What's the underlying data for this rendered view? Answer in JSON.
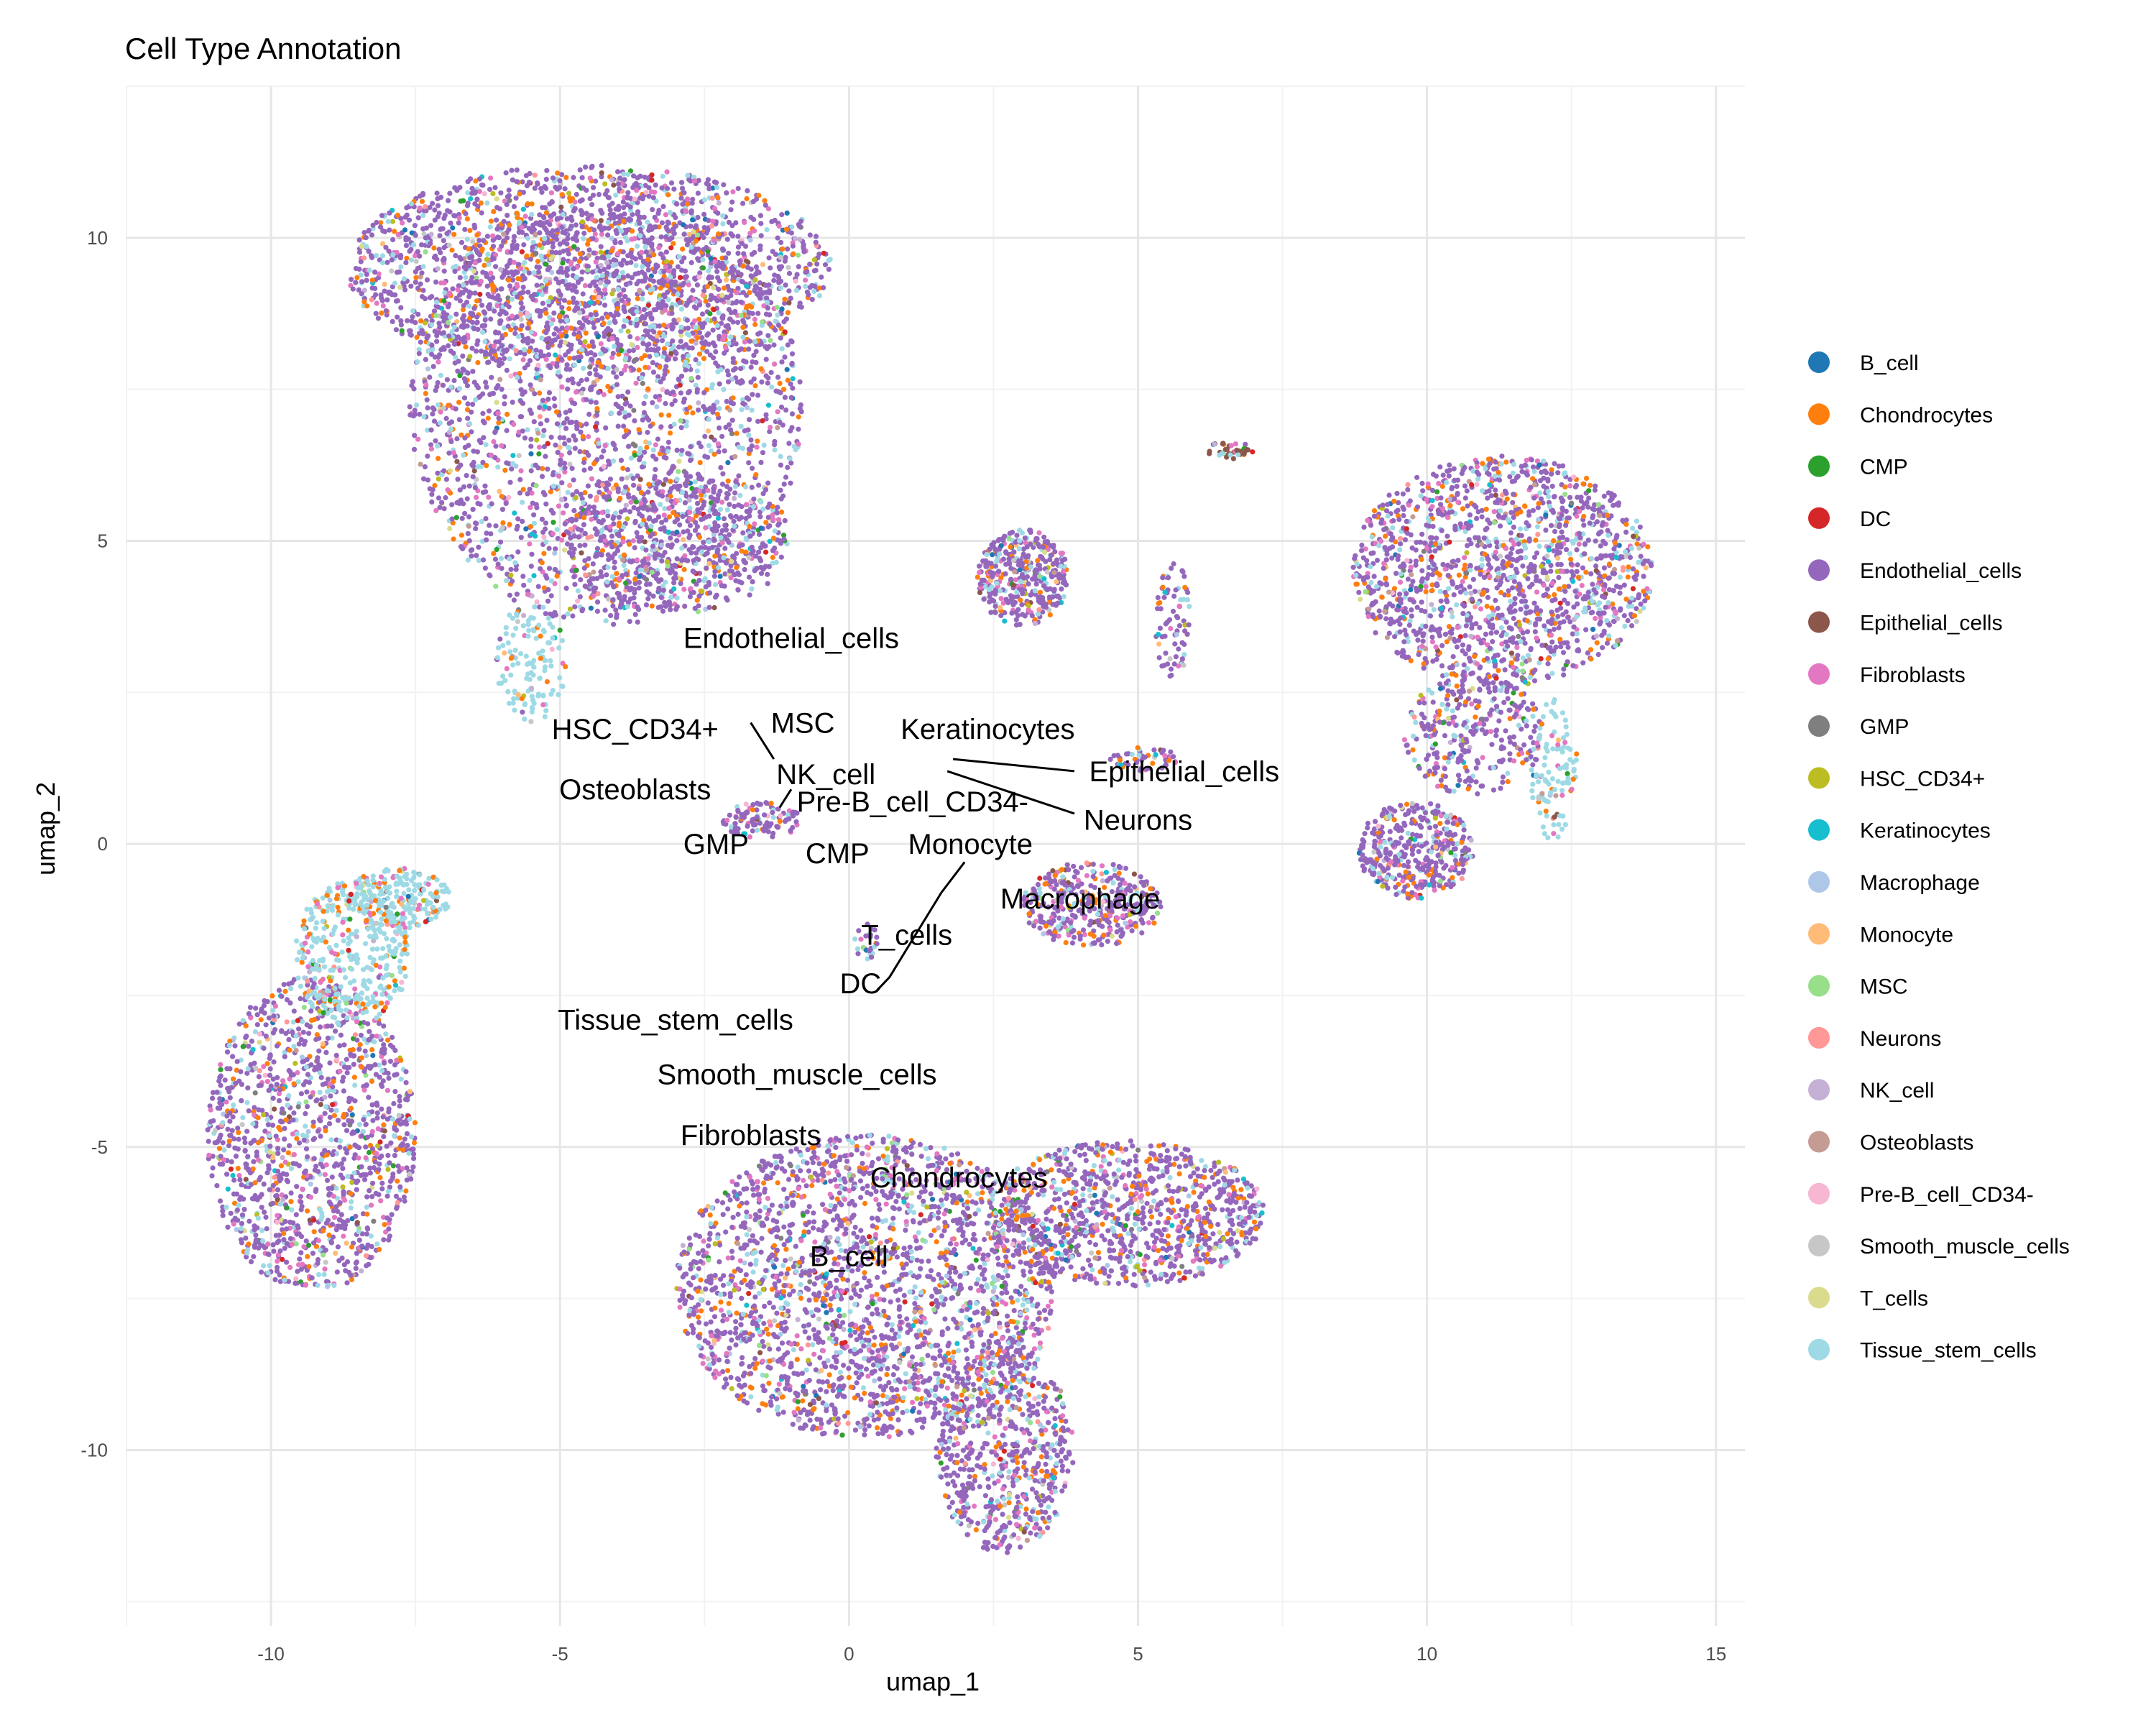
{
  "chart_data": {
    "type": "scatter",
    "title": "Cell Type Annotation",
    "xlabel": "umap_1",
    "ylabel": "umap_2",
    "xlim": [
      -12.5,
      15.5
    ],
    "ylim": [
      -12.9,
      12.5
    ],
    "x_ticks": [
      -10,
      -5,
      0,
      5,
      10,
      15
    ],
    "y_ticks": [
      -10,
      -5,
      0,
      5,
      10
    ],
    "x_tick_labels": [
      "-10",
      "-5",
      "0",
      "5",
      "10",
      "15"
    ],
    "y_tick_labels": [
      "-10",
      "-5",
      "0",
      "5",
      "10"
    ],
    "grid": true,
    "legend_position": "right",
    "categories": [
      {
        "name": "B_cell",
        "color": "#1f77b4"
      },
      {
        "name": "Chondrocytes",
        "color": "#ff7f0e"
      },
      {
        "name": "CMP",
        "color": "#2ca02c"
      },
      {
        "name": "DC",
        "color": "#d62728"
      },
      {
        "name": "Endothelial_cells",
        "color": "#9467bd"
      },
      {
        "name": "Epithelial_cells",
        "color": "#8c564b"
      },
      {
        "name": "Fibroblasts",
        "color": "#e377c2"
      },
      {
        "name": "GMP",
        "color": "#7f7f7f"
      },
      {
        "name": "HSC_CD34+",
        "color": "#bcbd22"
      },
      {
        "name": "Keratinocytes",
        "color": "#17becf"
      },
      {
        "name": "Macrophage",
        "color": "#aec7e8"
      },
      {
        "name": "Monocyte",
        "color": "#ffbb78"
      },
      {
        "name": "MSC",
        "color": "#98df8a"
      },
      {
        "name": "Neurons",
        "color": "#ff9896"
      },
      {
        "name": "NK_cell",
        "color": "#c5b0d5"
      },
      {
        "name": "Osteoblasts",
        "color": "#c49c94"
      },
      {
        "name": "Pre-B_cell_CD34-",
        "color": "#f7b6d2"
      },
      {
        "name": "Smooth_muscle_cells",
        "color": "#c7c7c7"
      },
      {
        "name": "T_cells",
        "color": "#dbdb8d"
      },
      {
        "name": "Tissue_stem_cells",
        "color": "#9edae5"
      }
    ],
    "clusters": [
      {
        "cx": -4.2,
        "cy": 7.2,
        "rx": 3.4,
        "ry": 3.6,
        "weight": 9,
        "dominant": "Endothelial_cells"
      },
      {
        "cx": -4.5,
        "cy": 9.5,
        "rx": 4.2,
        "ry": 1.7,
        "weight": 7,
        "dominant": "Endothelial_cells"
      },
      {
        "cx": -3.0,
        "cy": 5.0,
        "rx": 2.0,
        "ry": 1.2,
        "weight": 2,
        "dominant": "Endothelial_cells"
      },
      {
        "cx": -5.5,
        "cy": 3.0,
        "rx": 0.6,
        "ry": 1.0,
        "weight": 0.5,
        "dominant": "Tissue_stem_cells"
      },
      {
        "cx": -9.3,
        "cy": -4.8,
        "rx": 1.8,
        "ry": 2.6,
        "weight": 5,
        "dominant": "Endothelial_cells"
      },
      {
        "cx": -8.6,
        "cy": -1.8,
        "rx": 1.0,
        "ry": 1.2,
        "weight": 1.5,
        "dominant": "Tissue_stem_cells"
      },
      {
        "cx": -7.8,
        "cy": -0.9,
        "rx": 0.9,
        "ry": 0.5,
        "weight": 0.8,
        "dominant": "Tissue_stem_cells"
      },
      {
        "cx": 0.3,
        "cy": -7.3,
        "rx": 3.3,
        "ry": 2.5,
        "weight": 9,
        "dominant": "Endothelial_cells"
      },
      {
        "cx": 4.8,
        "cy": -6.1,
        "rx": 2.4,
        "ry": 1.2,
        "weight": 4,
        "dominant": "Endothelial_cells"
      },
      {
        "cx": 2.7,
        "cy": -10.0,
        "rx": 1.2,
        "ry": 1.7,
        "weight": 2.5,
        "dominant": "Endothelial_cells"
      },
      {
        "cx": 11.3,
        "cy": 4.5,
        "rx": 2.6,
        "ry": 1.9,
        "weight": 6,
        "dominant": "Endothelial_cells"
      },
      {
        "cx": 9.8,
        "cy": -0.1,
        "rx": 1.0,
        "ry": 0.8,
        "weight": 1.5,
        "dominant": "Endothelial_cells"
      },
      {
        "cx": 10.8,
        "cy": 1.8,
        "rx": 1.2,
        "ry": 1.0,
        "weight": 1.2,
        "dominant": "Endothelial_cells"
      },
      {
        "cx": 12.2,
        "cy": 1.2,
        "rx": 0.4,
        "ry": 1.2,
        "weight": 0.4,
        "dominant": "Tissue_stem_cells"
      },
      {
        "cx": 3.0,
        "cy": 4.4,
        "rx": 0.8,
        "ry": 0.8,
        "weight": 1.5,
        "dominant": "Endothelial_cells"
      },
      {
        "cx": 4.2,
        "cy": -1.0,
        "rx": 1.2,
        "ry": 0.7,
        "weight": 1.5,
        "dominant": "Endothelial_cells"
      },
      {
        "cx": -1.5,
        "cy": 0.4,
        "rx": 0.7,
        "ry": 0.3,
        "weight": 0.4,
        "dominant": "Endothelial_cells"
      },
      {
        "cx": 5.6,
        "cy": 3.7,
        "rx": 0.3,
        "ry": 1.0,
        "weight": 0.3,
        "dominant": "Endothelial_cells"
      },
      {
        "cx": 6.6,
        "cy": 6.5,
        "rx": 0.4,
        "ry": 0.15,
        "weight": 0.15,
        "dominant": "Epithelial_cells"
      },
      {
        "cx": 5.1,
        "cy": 1.4,
        "rx": 0.6,
        "ry": 0.2,
        "weight": 0.2,
        "dominant": "Endothelial_cells"
      },
      {
        "cx": 0.3,
        "cy": -1.6,
        "rx": 0.2,
        "ry": 0.3,
        "weight": 0.1,
        "dominant": "Endothelial_cells"
      }
    ],
    "cluster_labels": [
      {
        "text": "Endothelial_cells",
        "x": -1.0,
        "y": 3.4
      },
      {
        "text": "HSC_CD34+",
        "x": -3.7,
        "y": 1.9
      },
      {
        "text": "MSC",
        "x": -0.8,
        "y": 2.0
      },
      {
        "text": "Keratinocytes",
        "x": 2.4,
        "y": 1.9
      },
      {
        "text": "Osteoblasts",
        "x": -3.7,
        "y": 0.9
      },
      {
        "text": "NK_cell",
        "x": -0.4,
        "y": 1.15
      },
      {
        "text": "Epithelial_cells",
        "x": 5.8,
        "y": 1.2
      },
      {
        "text": "Pre-B_cell_CD34-",
        "x": 1.1,
        "y": 0.7
      },
      {
        "text": "Neurons",
        "x": 5.0,
        "y": 0.4
      },
      {
        "text": "GMP",
        "x": -2.3,
        "y": 0.0
      },
      {
        "text": "CMP",
        "x": -0.2,
        "y": -0.15
      },
      {
        "text": "Monocyte",
        "x": 2.1,
        "y": 0.0
      },
      {
        "text": "Macrophage",
        "x": 4.0,
        "y": -0.9
      },
      {
        "text": "T_cells",
        "x": 1.0,
        "y": -1.5
      },
      {
        "text": "DC",
        "x": 0.2,
        "y": -2.3
      },
      {
        "text": "Tissue_stem_cells",
        "x": -3.0,
        "y": -2.9
      },
      {
        "text": "Smooth_muscle_cells",
        "x": -0.9,
        "y": -3.8
      },
      {
        "text": "Fibroblasts",
        "x": -1.7,
        "y": -4.8
      },
      {
        "text": "Chondrocytes",
        "x": 1.9,
        "y": -5.5
      },
      {
        "text": "B_cell",
        "x": 0.0,
        "y": -6.8
      }
    ]
  }
}
